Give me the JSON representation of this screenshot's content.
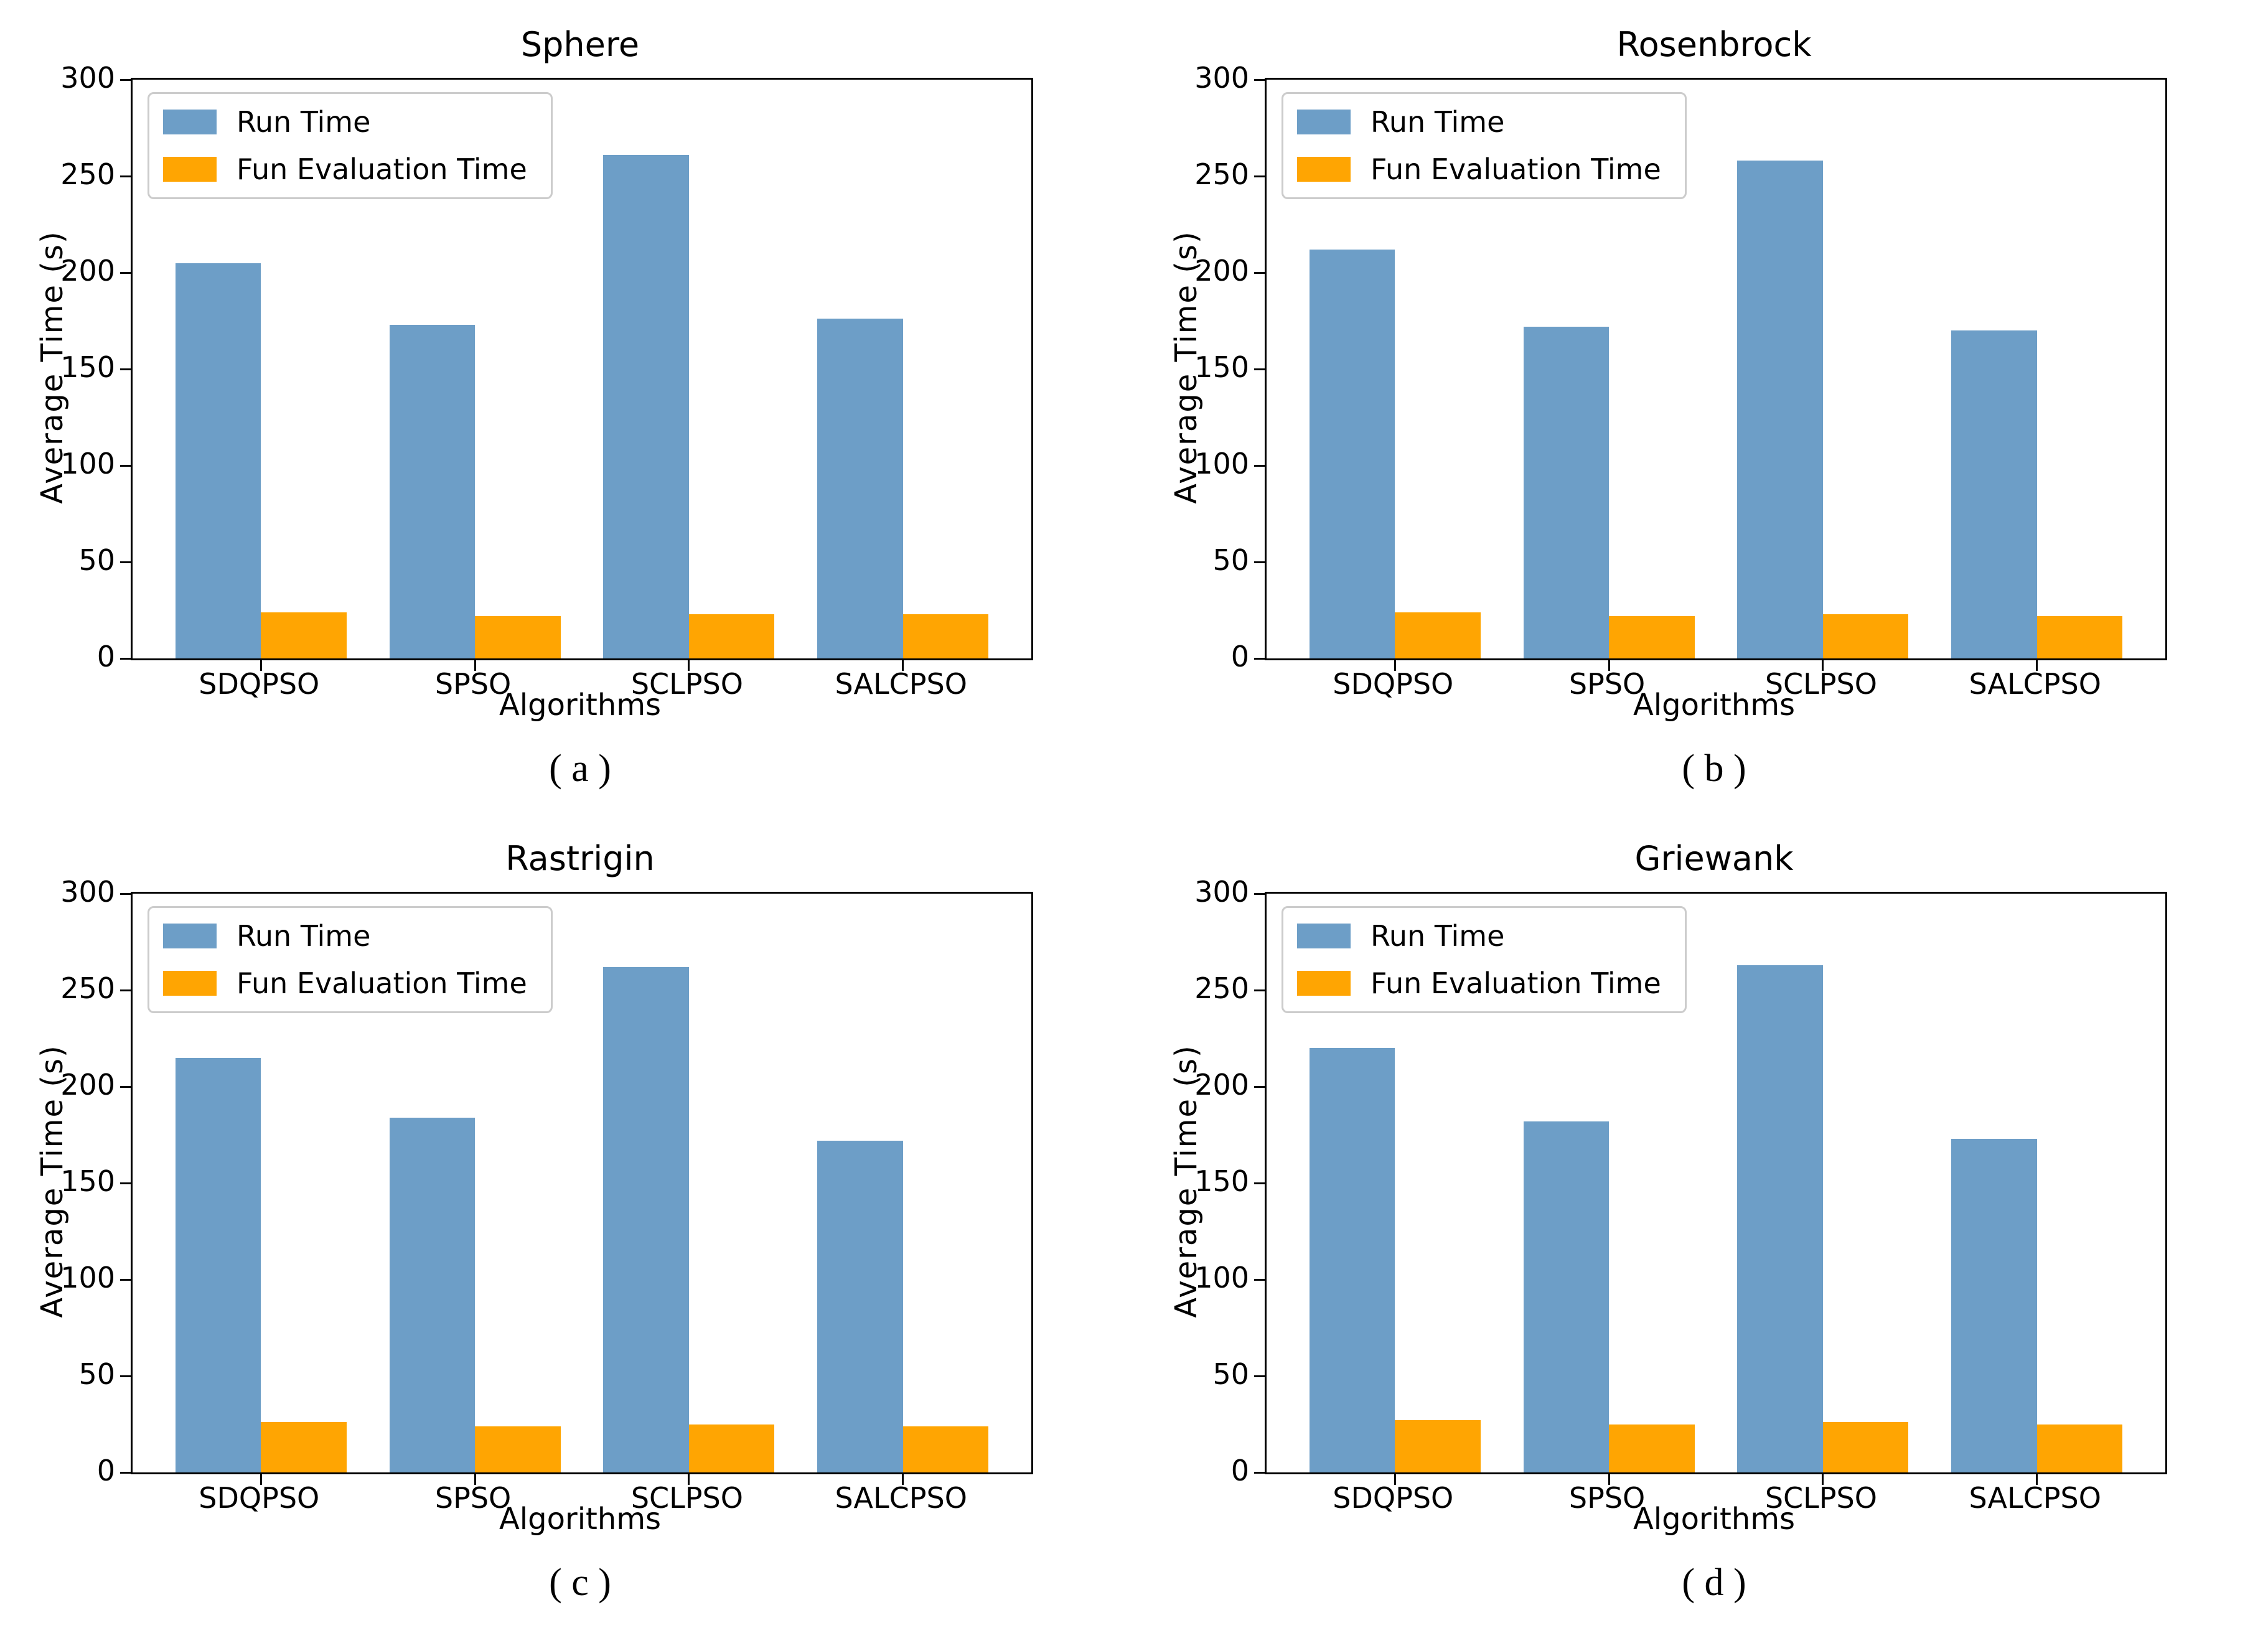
{
  "colors": {
    "run_time": "#6D9EC7",
    "fun_evaluation_time": "#FFA502",
    "axis": "#000000",
    "legend_border": "#CCCCCC",
    "background": "#FFFFFF"
  },
  "chart_data": [
    {
      "type": "bar",
      "title": "Sphere",
      "caption": "( a )",
      "xlabel": "Algorithms",
      "ylabel": "Average Time (s)",
      "categories": [
        "SDQPSO",
        "SPSO",
        "SCLPSO",
        "SALCPSO"
      ],
      "series": [
        {
          "name": "Run Time",
          "color_key": "run_time",
          "values": [
            205,
            173,
            261,
            176
          ]
        },
        {
          "name": "Fun Evaluation Time",
          "color_key": "fun_evaluation_time",
          "values": [
            24,
            22,
            23,
            23
          ]
        }
      ],
      "ylim": [
        0,
        300
      ],
      "yticks": [
        0,
        50,
        100,
        150,
        200,
        250,
        300
      ],
      "grid": false,
      "legend_position": "upper left"
    },
    {
      "type": "bar",
      "title": "Rosenbrock",
      "caption": "( b )",
      "xlabel": "Algorithms",
      "ylabel": "Average Time (s)",
      "categories": [
        "SDQPSO",
        "SPSO",
        "SCLPSO",
        "SALCPSO"
      ],
      "series": [
        {
          "name": "Run Time",
          "color_key": "run_time",
          "values": [
            212,
            172,
            258,
            170
          ]
        },
        {
          "name": "Fun Evaluation Time",
          "color_key": "fun_evaluation_time",
          "values": [
            24,
            22,
            23,
            22
          ]
        }
      ],
      "ylim": [
        0,
        300
      ],
      "yticks": [
        0,
        50,
        100,
        150,
        200,
        250,
        300
      ],
      "grid": false,
      "legend_position": "upper left"
    },
    {
      "type": "bar",
      "title": "Rastrigin",
      "caption": "( c )",
      "xlabel": "Algorithms",
      "ylabel": "Average Time (s)",
      "categories": [
        "SDQPSO",
        "SPSO",
        "SCLPSO",
        "SALCPSO"
      ],
      "series": [
        {
          "name": "Run Time",
          "color_key": "run_time",
          "values": [
            215,
            184,
            262,
            172
          ]
        },
        {
          "name": "Fun Evaluation Time",
          "color_key": "fun_evaluation_time",
          "values": [
            26,
            24,
            25,
            24
          ]
        }
      ],
      "ylim": [
        0,
        300
      ],
      "yticks": [
        0,
        50,
        100,
        150,
        200,
        250,
        300
      ],
      "grid": false,
      "legend_position": "upper left"
    },
    {
      "type": "bar",
      "title": "Griewank",
      "caption": "( d )",
      "xlabel": "Algorithms",
      "ylabel": "Average Time (s)",
      "categories": [
        "SDQPSO",
        "SPSO",
        "SCLPSO",
        "SALCPSO"
      ],
      "series": [
        {
          "name": "Run Time",
          "color_key": "run_time",
          "values": [
            220,
            182,
            263,
            173
          ]
        },
        {
          "name": "Fun Evaluation Time",
          "color_key": "fun_evaluation_time",
          "values": [
            27,
            25,
            26,
            25
          ]
        }
      ],
      "ylim": [
        0,
        300
      ],
      "yticks": [
        0,
        50,
        100,
        150,
        200,
        250,
        300
      ],
      "grid": false,
      "legend_position": "upper left"
    }
  ]
}
